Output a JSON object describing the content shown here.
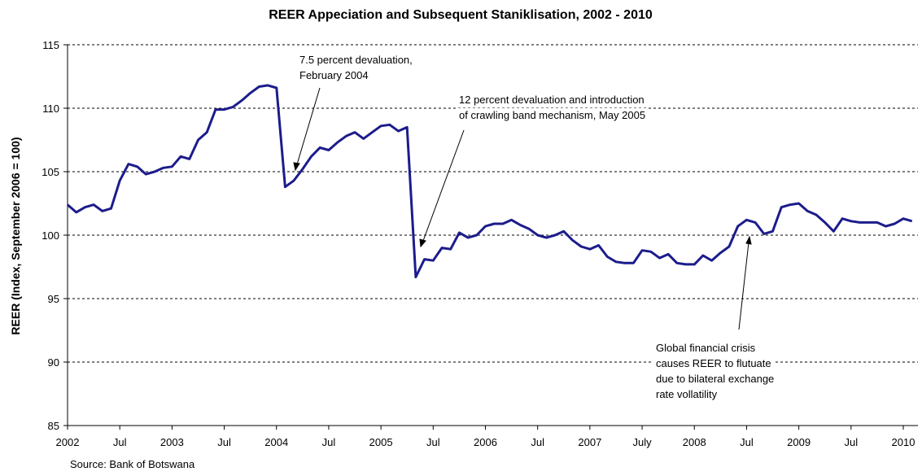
{
  "chart_data": {
    "type": "line",
    "title": "REER Appeciation and Subsequent Staniklisation, 2002 - 2010",
    "y_label": "REER (Index, September 2006 = 100)",
    "source": "Source: Bank of Botswana",
    "categories": [
      "2002",
      null,
      null,
      null,
      null,
      null,
      "Jul",
      null,
      null,
      null,
      null,
      null,
      "2003",
      null,
      null,
      null,
      null,
      null,
      "Jul",
      null,
      null,
      null,
      null,
      null,
      "2004",
      null,
      null,
      null,
      null,
      null,
      "Jul",
      null,
      null,
      null,
      null,
      null,
      "2005",
      null,
      null,
      null,
      null,
      null,
      "Jul",
      null,
      null,
      null,
      null,
      null,
      "2006",
      null,
      null,
      null,
      null,
      null,
      "Jul",
      null,
      null,
      null,
      null,
      null,
      "2007",
      null,
      null,
      null,
      null,
      null,
      "July",
      null,
      null,
      null,
      null,
      null,
      "2008",
      null,
      null,
      null,
      null,
      null,
      "Jul",
      null,
      null,
      null,
      null,
      null,
      "2009",
      null,
      null,
      null,
      null,
      null,
      "Jul",
      null,
      null,
      null,
      null,
      null,
      "2010",
      null
    ],
    "values": [
      102.4,
      101.8,
      102.2,
      102.4,
      101.9,
      102.1,
      104.3,
      105.6,
      105.4,
      104.8,
      105.0,
      105.3,
      105.4,
      106.2,
      106.0,
      107.5,
      108.1,
      109.9,
      109.9,
      110.1,
      110.6,
      111.2,
      111.7,
      111.8,
      111.6,
      103.8,
      104.3,
      105.2,
      106.2,
      106.9,
      106.7,
      107.3,
      107.8,
      108.1,
      107.6,
      108.1,
      108.6,
      108.7,
      108.2,
      108.5,
      96.7,
      98.1,
      98.0,
      99.0,
      98.9,
      100.2,
      99.8,
      100.0,
      100.7,
      100.9,
      100.9,
      101.2,
      100.8,
      100.5,
      100.0,
      99.8,
      100.0,
      100.3,
      99.6,
      99.1,
      98.9,
      99.2,
      98.3,
      97.9,
      97.8,
      97.8,
      98.8,
      98.7,
      98.2,
      98.5,
      97.8,
      97.7,
      97.7,
      98.4,
      98.0,
      98.6,
      99.1,
      100.7,
      101.2,
      101.0,
      100.1,
      100.3,
      102.2,
      102.4,
      102.5,
      101.9,
      101.6,
      101.0,
      100.3,
      101.3,
      101.1,
      101.0,
      101.0,
      101.0,
      100.7,
      100.9,
      101.3,
      101.1
    ],
    "color": "#1c1c8c",
    "ylim": [
      85,
      115
    ],
    "yticks": [
      85,
      90,
      95,
      100,
      105,
      110,
      115
    ],
    "grid": true,
    "annotations": [
      {
        "lines": [
          "7.5 percent devaluation,",
          "February 2004"
        ]
      },
      {
        "lines": [
          "12 percent devaluation and introduction",
          "of crawling band mechanism, May 2005"
        ]
      },
      {
        "lines": [
          "Global financial crisis",
          "causes REER to flutuate",
          "due to bilateral exchange",
          "rate vollatility"
        ]
      }
    ]
  }
}
